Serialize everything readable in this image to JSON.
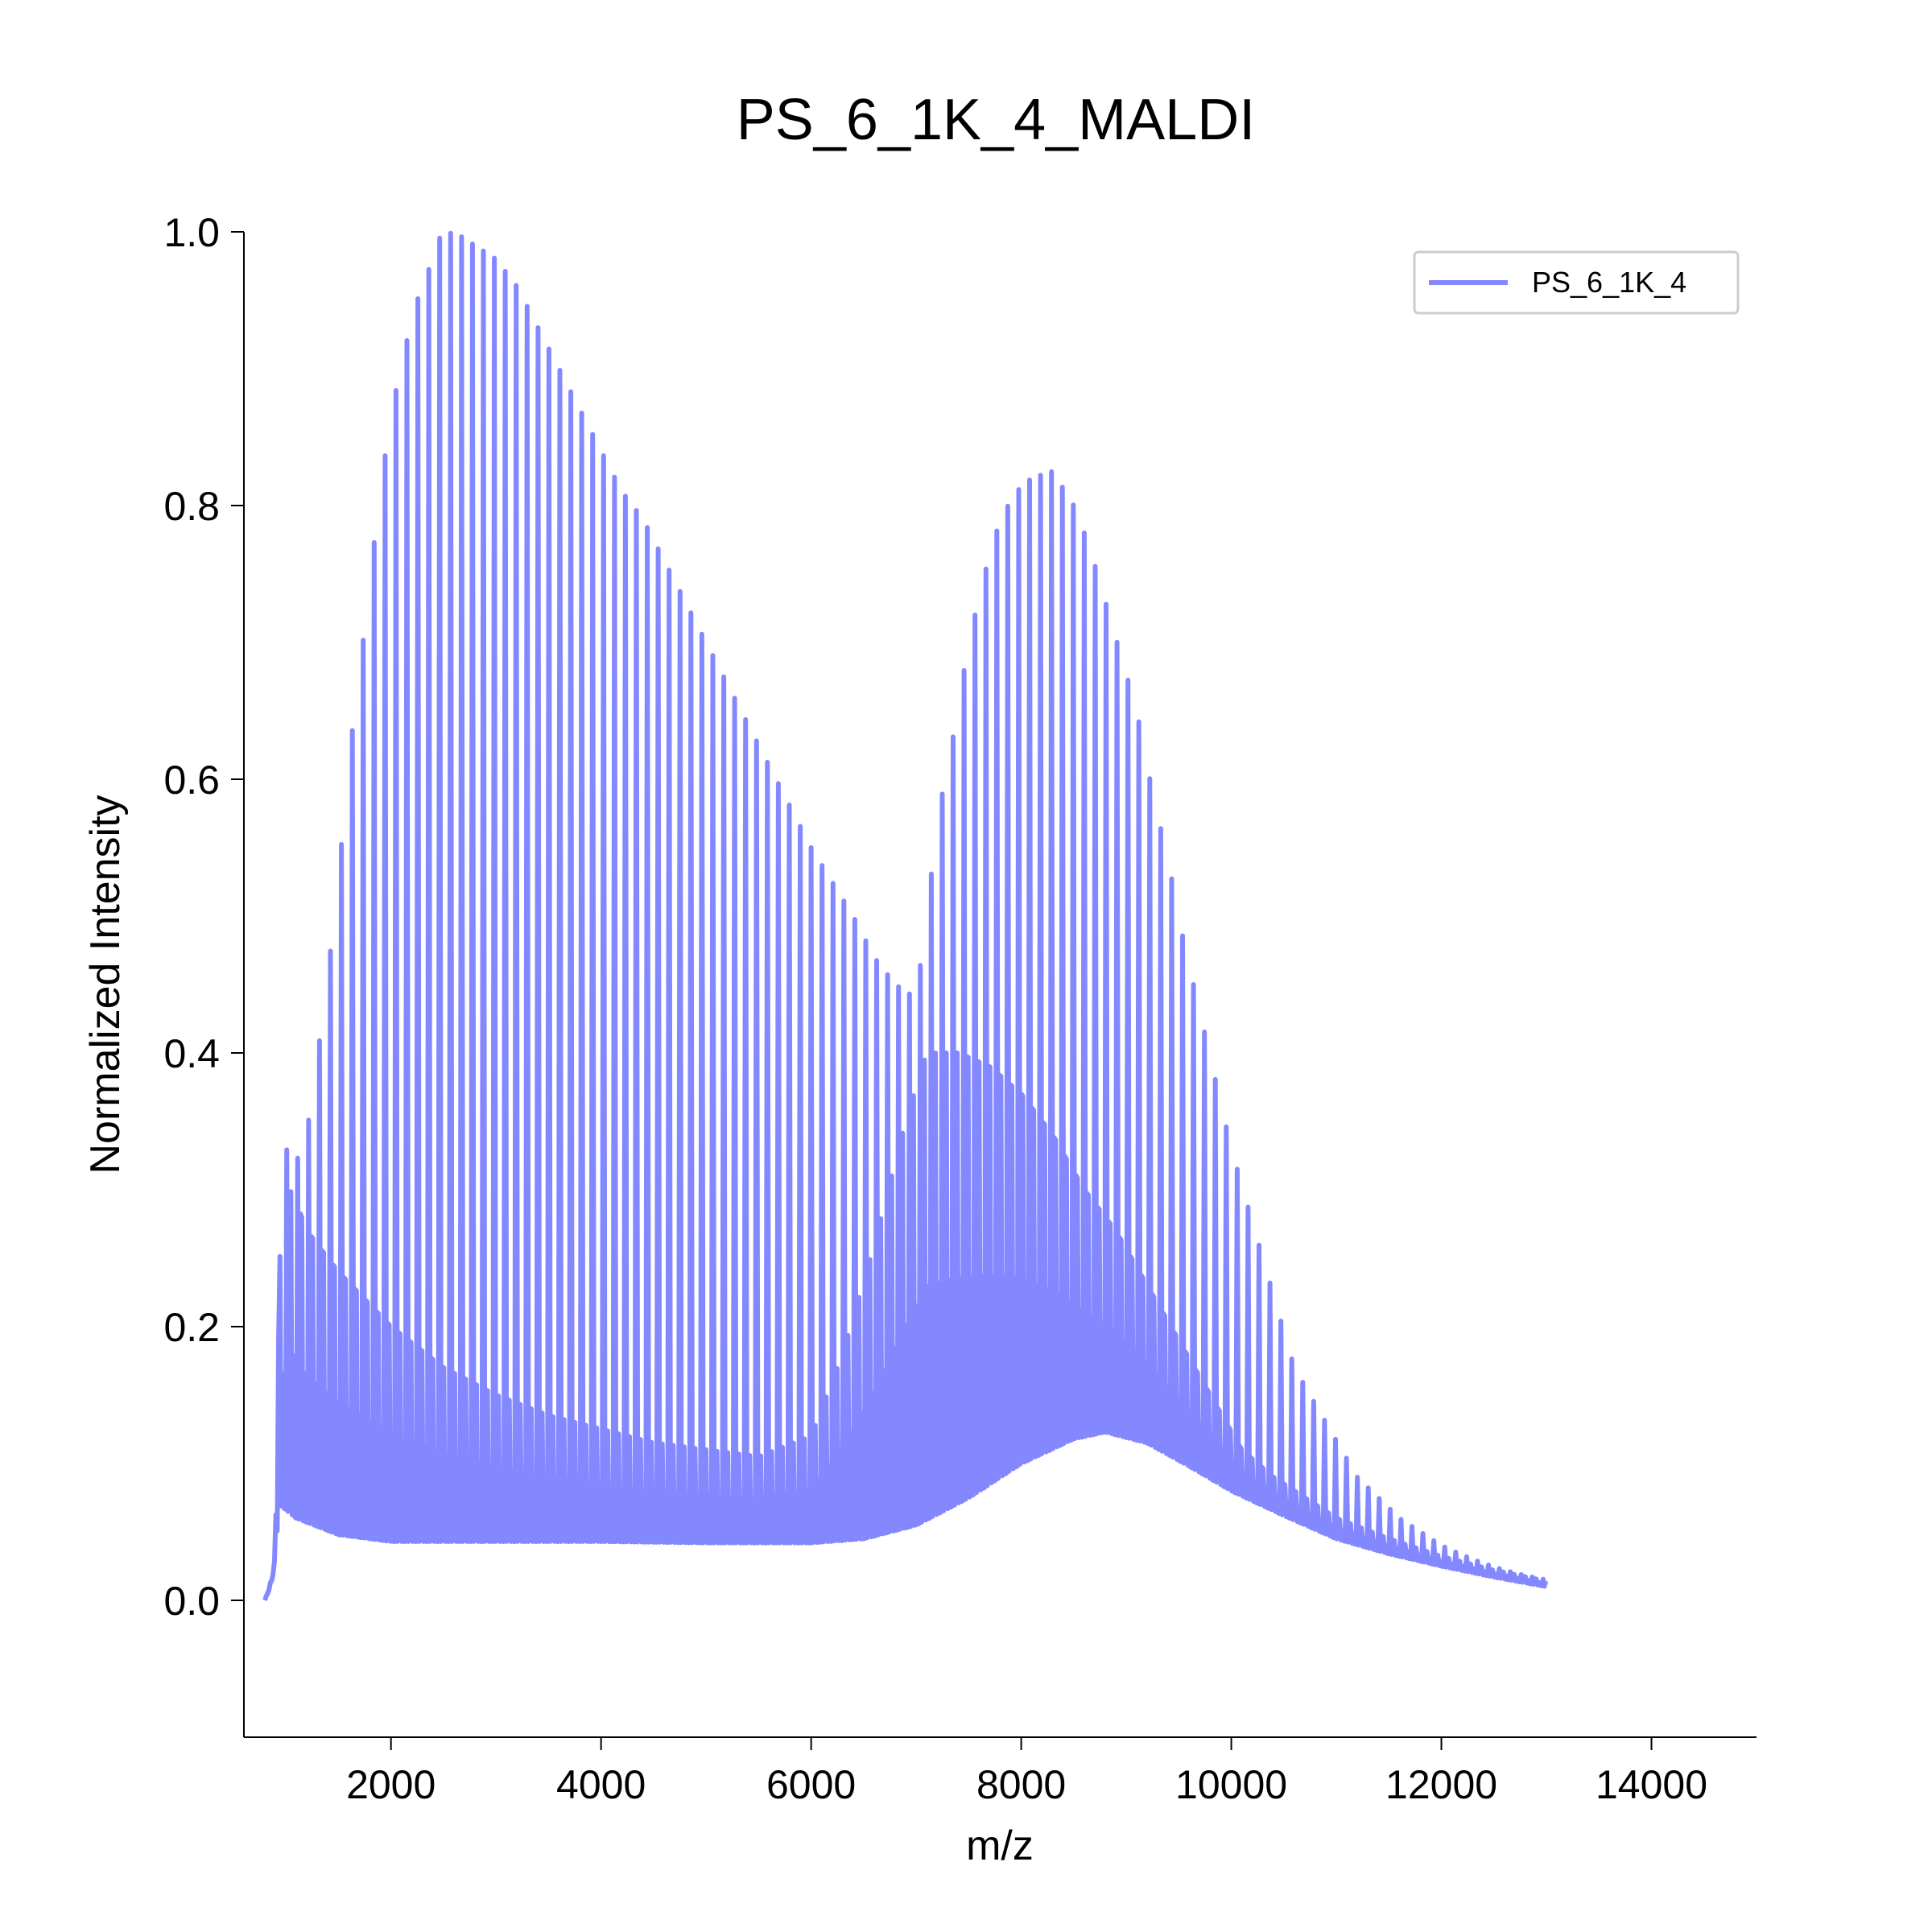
{
  "chart_data": {
    "type": "line",
    "title": "PS_6_1K_4_MALDI",
    "xlabel": "m/z",
    "ylabel": "Normalized Intensity",
    "xlim": [
      600,
      15000
    ],
    "ylim": [
      -0.1,
      1.0
    ],
    "xticks": [
      2000,
      4000,
      6000,
      8000,
      10000,
      12000,
      14000
    ],
    "yticks": [
      0.0,
      0.2,
      0.4,
      0.6,
      0.8,
      1.0
    ],
    "xtick_labels": [
      "2000",
      "4000",
      "6000",
      "8000",
      "10000",
      "12000",
      "14000"
    ],
    "ytick_labels": [
      "0.0",
      "0.2",
      "0.4",
      "0.6",
      "0.8",
      "1.0"
    ],
    "grid": false,
    "legend": {
      "placement": "top-right"
    },
    "colors": {
      "series": "#8488ff",
      "axis": "#000000"
    },
    "series": [
      {
        "name": "PS_6_1K_4",
        "x_range": [
          800,
          13000
        ],
        "peak_spacing": 104,
        "envelope": [
          [
            800,
            0.0
          ],
          [
            900,
            0.02
          ],
          [
            930,
            0.34
          ],
          [
            1000,
            0.33
          ],
          [
            1100,
            0.32
          ],
          [
            1250,
            0.36
          ],
          [
            1350,
            0.43
          ],
          [
            1450,
            0.49
          ],
          [
            1550,
            0.57
          ],
          [
            1650,
            0.65
          ],
          [
            1750,
            0.71
          ],
          [
            1850,
            0.78
          ],
          [
            1950,
            0.84
          ],
          [
            2050,
            0.885
          ],
          [
            2150,
            0.92
          ],
          [
            2250,
            0.95
          ],
          [
            2350,
            0.97
          ],
          [
            2450,
            0.995
          ],
          [
            2600,
            1.0
          ],
          [
            2800,
            0.99
          ],
          [
            3000,
            0.98
          ],
          [
            3200,
            0.96
          ],
          [
            3400,
            0.93
          ],
          [
            3600,
            0.9
          ],
          [
            3800,
            0.87
          ],
          [
            4000,
            0.84
          ],
          [
            4200,
            0.81
          ],
          [
            4400,
            0.79
          ],
          [
            4600,
            0.76
          ],
          [
            4800,
            0.73
          ],
          [
            5000,
            0.7
          ],
          [
            5200,
            0.67
          ],
          [
            5400,
            0.64
          ],
          [
            5600,
            0.61
          ],
          [
            5800,
            0.58
          ],
          [
            6000,
            0.55
          ],
          [
            6200,
            0.525
          ],
          [
            6400,
            0.5
          ],
          [
            6600,
            0.47
          ],
          [
            6800,
            0.45
          ],
          [
            7000,
            0.44
          ],
          [
            7100,
            0.5
          ],
          [
            7200,
            0.57
          ],
          [
            7350,
            0.63
          ],
          [
            7500,
            0.7
          ],
          [
            7650,
            0.75
          ],
          [
            7800,
            0.79
          ],
          [
            7950,
            0.81
          ],
          [
            8100,
            0.82
          ],
          [
            8300,
            0.825
          ],
          [
            8500,
            0.8
          ],
          [
            8650,
            0.77
          ],
          [
            8800,
            0.73
          ],
          [
            8950,
            0.69
          ],
          [
            9100,
            0.65
          ],
          [
            9250,
            0.59
          ],
          [
            9400,
            0.54
          ],
          [
            9550,
            0.48
          ],
          [
            9700,
            0.43
          ],
          [
            9850,
            0.38
          ],
          [
            10000,
            0.33
          ],
          [
            10150,
            0.29
          ],
          [
            10300,
            0.25
          ],
          [
            10450,
            0.21
          ],
          [
            10600,
            0.17
          ],
          [
            10750,
            0.15
          ],
          [
            10900,
            0.13
          ],
          [
            11050,
            0.11
          ],
          [
            11200,
            0.09
          ],
          [
            11400,
            0.075
          ],
          [
            11600,
            0.06
          ],
          [
            11800,
            0.05
          ],
          [
            12000,
            0.04
          ],
          [
            12200,
            0.033
          ],
          [
            12400,
            0.027
          ],
          [
            12600,
            0.022
          ],
          [
            12800,
            0.018
          ],
          [
            13000,
            0.015
          ]
        ],
        "subpeak_envelope": [
          [
            800,
            0.0
          ],
          [
            900,
            0.02
          ],
          [
            940,
            0.25
          ],
          [
            1050,
            0.3
          ],
          [
            1200,
            0.27
          ],
          [
            1500,
            0.24
          ],
          [
            2000,
            0.2
          ],
          [
            2500,
            0.17
          ],
          [
            3000,
            0.15
          ],
          [
            3500,
            0.135
          ],
          [
            4000,
            0.125
          ],
          [
            4500,
            0.115
          ],
          [
            5000,
            0.11
          ],
          [
            5500,
            0.105
          ],
          [
            6000,
            0.12
          ],
          [
            6300,
            0.18
          ],
          [
            6600,
            0.26
          ],
          [
            6900,
            0.35
          ],
          [
            7100,
            0.4
          ],
          [
            7400,
            0.4
          ],
          [
            7700,
            0.39
          ],
          [
            8000,
            0.37
          ],
          [
            8300,
            0.34
          ],
          [
            8600,
            0.3
          ],
          [
            8900,
            0.27
          ],
          [
            9200,
            0.23
          ],
          [
            9500,
            0.19
          ],
          [
            9800,
            0.15
          ],
          [
            10100,
            0.11
          ],
          [
            10400,
            0.09
          ],
          [
            10700,
            0.075
          ],
          [
            11000,
            0.06
          ],
          [
            11500,
            0.045
          ],
          [
            12000,
            0.032
          ],
          [
            12500,
            0.022
          ],
          [
            13000,
            0.014
          ]
        ],
        "baseline": [
          [
            800,
            0.0
          ],
          [
            880,
            0.02
          ],
          [
            940,
            0.07
          ],
          [
            1100,
            0.06
          ],
          [
            1500,
            0.048
          ],
          [
            2000,
            0.043
          ],
          [
            3000,
            0.043
          ],
          [
            4000,
            0.043
          ],
          [
            5000,
            0.042
          ],
          [
            6000,
            0.042
          ],
          [
            6500,
            0.045
          ],
          [
            7000,
            0.055
          ],
          [
            7500,
            0.075
          ],
          [
            8000,
            0.1
          ],
          [
            8500,
            0.118
          ],
          [
            8800,
            0.123
          ],
          [
            9200,
            0.115
          ],
          [
            9600,
            0.098
          ],
          [
            10000,
            0.08
          ],
          [
            10500,
            0.062
          ],
          [
            11000,
            0.045
          ],
          [
            11500,
            0.034
          ],
          [
            12000,
            0.025
          ],
          [
            12500,
            0.017
          ],
          [
            13000,
            0.01
          ]
        ]
      }
    ]
  }
}
